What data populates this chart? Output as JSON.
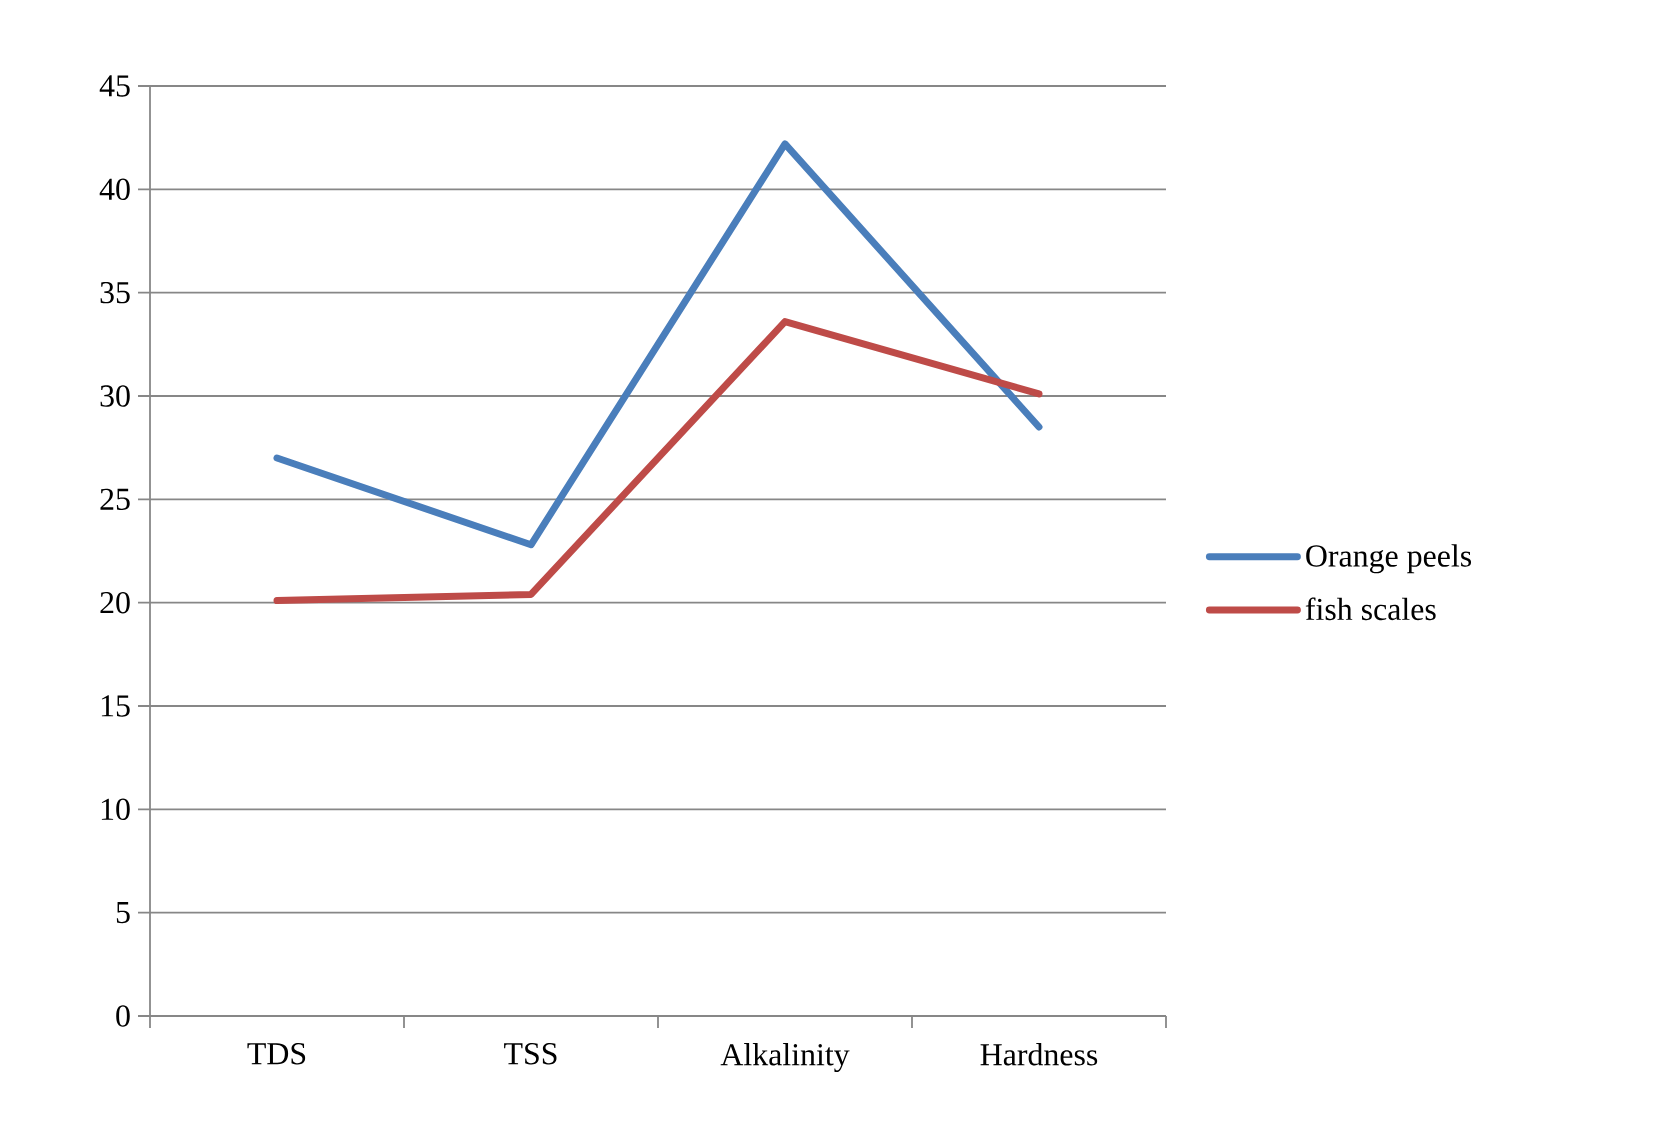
{
  "chart_data": {
    "type": "line",
    "categories": [
      "TDS",
      "TSS",
      "Alkalinity",
      "Hardness"
    ],
    "series": [
      {
        "name": "Orange peels",
        "color": "#4a7ebb",
        "values": [
          27,
          22.8,
          42.2,
          28.5
        ]
      },
      {
        "name": "fish scales",
        "color": "#be4b48",
        "values": [
          20.1,
          20.4,
          33.6,
          30.1
        ]
      }
    ],
    "ylim": [
      0,
      45
    ],
    "yticks": [
      0,
      5,
      10,
      15,
      20,
      25,
      30,
      35,
      40,
      45
    ],
    "grid": "y",
    "legend": "right"
  }
}
